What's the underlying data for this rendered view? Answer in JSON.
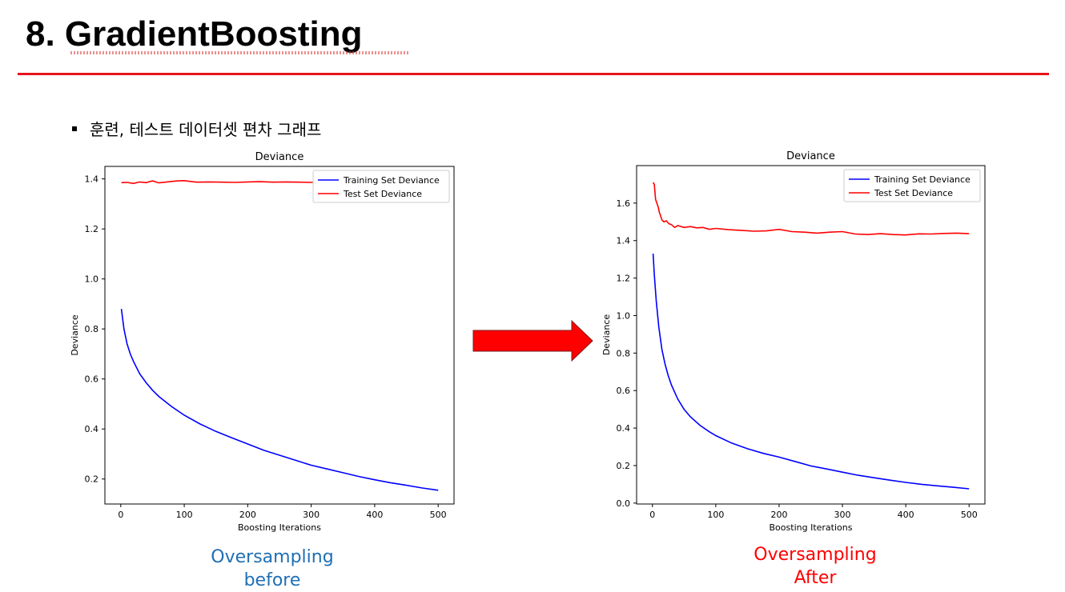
{
  "slide": {
    "title": "8. GradientBoosting",
    "bullet": "훈련, 테스트 데이터셋 편차 그래프",
    "accent_color": "#e8141b"
  },
  "captions": {
    "left": {
      "line1": "Oversampling",
      "line2": "before",
      "color": "#1f6fb5"
    },
    "right": {
      "line1": "Oversampling",
      "line2": "After",
      "color": "#ff0000"
    }
  },
  "arrow": {
    "color": "#ff0000",
    "icon": "right-arrow-icon"
  },
  "chart_data": [
    {
      "type": "line",
      "title": "Deviance",
      "xlabel": "Boosting Iterations",
      "ylabel": "Deviance",
      "xlim": [
        -25,
        525
      ],
      "ylim": [
        0.1,
        1.45
      ],
      "xticks": [
        0,
        100,
        200,
        300,
        400,
        500
      ],
      "yticks": [
        0.2,
        0.4,
        0.6,
        0.8,
        1.0,
        1.2,
        1.4
      ],
      "ytick_labels": [
        "0.2",
        "0.4",
        "0.6",
        "0.8",
        "1.0",
        "1.2",
        "1.4"
      ],
      "legend": "top-right",
      "series": [
        {
          "name": "Training Set Deviance",
          "color": "#0000ff",
          "x": [
            1,
            5,
            10,
            15,
            20,
            30,
            40,
            50,
            60,
            80,
            100,
            125,
            150,
            175,
            200,
            225,
            250,
            275,
            300,
            325,
            350,
            375,
            400,
            425,
            450,
            475,
            500
          ],
          "y": [
            0.88,
            0.8,
            0.74,
            0.7,
            0.67,
            0.62,
            0.585,
            0.555,
            0.53,
            0.49,
            0.455,
            0.42,
            0.39,
            0.365,
            0.34,
            0.315,
            0.295,
            0.275,
            0.255,
            0.24,
            0.225,
            0.21,
            0.197,
            0.185,
            0.175,
            0.164,
            0.155
          ]
        },
        {
          "name": "Test Set Deviance",
          "color": "#ff0000",
          "x": [
            1,
            10,
            20,
            30,
            40,
            50,
            60,
            70,
            80,
            90,
            100,
            110,
            120,
            140,
            160,
            180,
            200,
            220,
            240,
            260,
            280,
            300,
            320,
            340,
            360,
            380,
            400,
            420,
            440,
            460,
            480,
            500
          ],
          "y": [
            1.385,
            1.386,
            1.382,
            1.388,
            1.385,
            1.392,
            1.384,
            1.387,
            1.39,
            1.392,
            1.393,
            1.39,
            1.387,
            1.388,
            1.387,
            1.386,
            1.388,
            1.389,
            1.387,
            1.388,
            1.387,
            1.386,
            1.388,
            1.387,
            1.389,
            1.387,
            1.388,
            1.387,
            1.388,
            1.386,
            1.388,
            1.387
          ]
        }
      ]
    },
    {
      "type": "line",
      "title": "Deviance",
      "xlabel": "Boosting Iterations",
      "ylabel": "Deviance",
      "xlim": [
        -25,
        525
      ],
      "ylim": [
        -0.005,
        1.8
      ],
      "xticks": [
        0,
        100,
        200,
        300,
        400,
        500
      ],
      "yticks": [
        0.0,
        0.2,
        0.4,
        0.6,
        0.8,
        1.0,
        1.2,
        1.4,
        1.6
      ],
      "ytick_labels": [
        "0.0",
        "0.2",
        "0.4",
        "0.6",
        "0.8",
        "1.0",
        "1.2",
        "1.4",
        "1.6"
      ],
      "legend": "top-right",
      "series": [
        {
          "name": "Training Set Deviance",
          "color": "#0000ff",
          "x": [
            1,
            3,
            6,
            10,
            15,
            20,
            25,
            30,
            40,
            50,
            60,
            75,
            90,
            100,
            125,
            150,
            175,
            200,
            225,
            250,
            275,
            300,
            325,
            350,
            375,
            400,
            425,
            450,
            475,
            500
          ],
          "y": [
            1.33,
            1.22,
            1.08,
            0.94,
            0.82,
            0.74,
            0.68,
            0.63,
            0.555,
            0.5,
            0.46,
            0.415,
            0.38,
            0.36,
            0.32,
            0.29,
            0.265,
            0.245,
            0.222,
            0.198,
            0.182,
            0.165,
            0.148,
            0.135,
            0.122,
            0.11,
            0.1,
            0.092,
            0.084,
            0.076
          ]
        },
        {
          "name": "Test Set Deviance",
          "color": "#ff0000",
          "x": [
            1,
            3,
            5,
            7,
            9,
            11,
            13,
            15,
            18,
            22,
            26,
            30,
            35,
            40,
            50,
            60,
            70,
            80,
            90,
            100,
            120,
            140,
            160,
            180,
            200,
            220,
            240,
            260,
            280,
            300,
            320,
            340,
            360,
            380,
            400,
            420,
            440,
            460,
            480,
            500
          ],
          "y": [
            1.71,
            1.7,
            1.62,
            1.6,
            1.58,
            1.55,
            1.53,
            1.51,
            1.5,
            1.505,
            1.49,
            1.485,
            1.47,
            1.48,
            1.47,
            1.475,
            1.468,
            1.47,
            1.46,
            1.465,
            1.458,
            1.455,
            1.45,
            1.452,
            1.46,
            1.448,
            1.445,
            1.44,
            1.445,
            1.448,
            1.435,
            1.432,
            1.437,
            1.432,
            1.43,
            1.436,
            1.435,
            1.438,
            1.44,
            1.437
          ]
        }
      ]
    }
  ]
}
